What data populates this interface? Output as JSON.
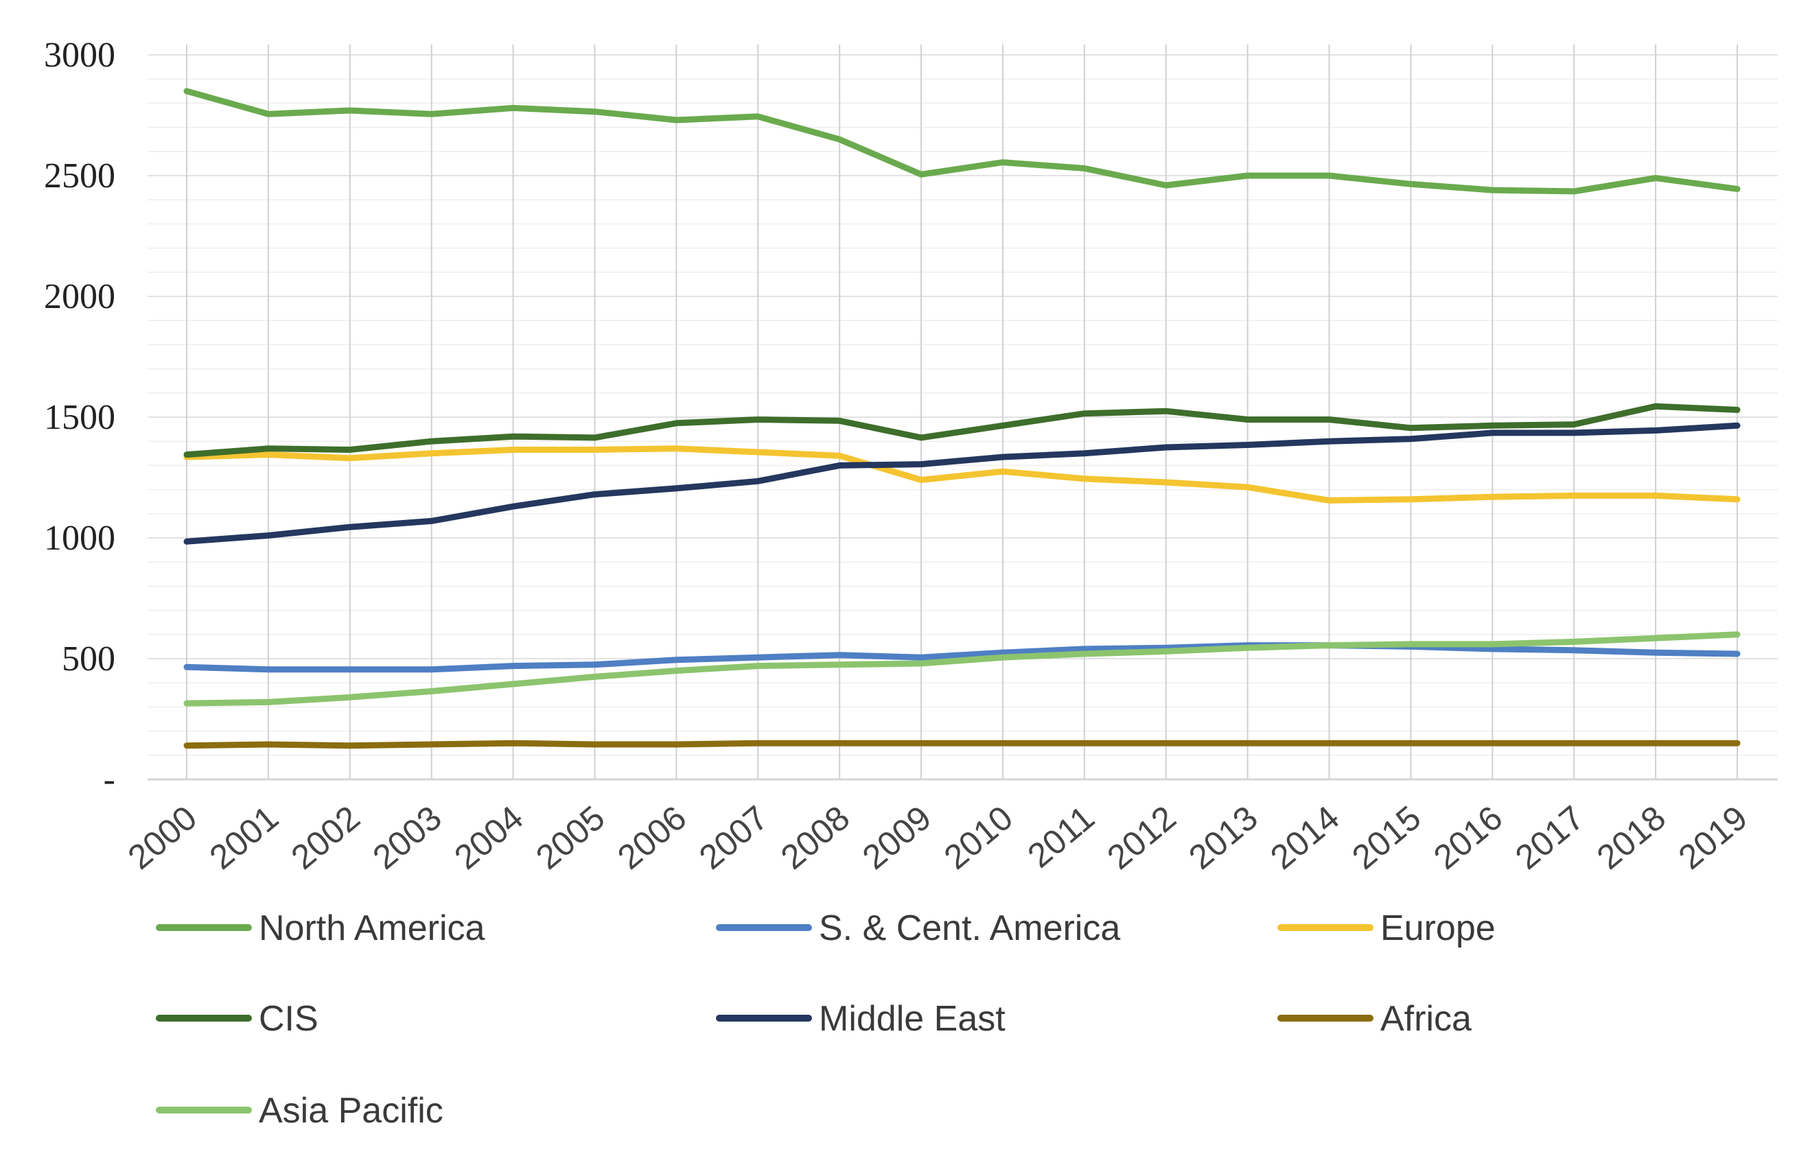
{
  "chart_data": {
    "type": "line",
    "title": "",
    "xlabel": "",
    "ylabel": "",
    "ylim": [
      0,
      3000
    ],
    "y_tick_values": [
      0,
      500,
      1000,
      1500,
      2000,
      2500,
      3000
    ],
    "y_tick_labels": [
      "-",
      "500",
      "1000",
      "1500",
      "2000",
      "2500",
      "3000"
    ],
    "grid": true,
    "legend_position": "bottom",
    "categories": [
      "2000",
      "2001",
      "2002",
      "2003",
      "2004",
      "2005",
      "2006",
      "2007",
      "2008",
      "2009",
      "2010",
      "2011",
      "2012",
      "2013",
      "2014",
      "2015",
      "2016",
      "2017",
      "2018",
      "2019"
    ],
    "series": [
      {
        "name": "North America",
        "color": "#6aaa4e",
        "values": [
          2850,
          2755,
          2770,
          2755,
          2780,
          2765,
          2730,
          2745,
          2650,
          2505,
          2555,
          2530,
          2460,
          2500,
          2500,
          2465,
          2440,
          2435,
          2490,
          2445
        ]
      },
      {
        "name": "S. & Cent. America",
        "color": "#4f7fc4",
        "values": [
          465,
          455,
          455,
          455,
          470,
          475,
          495,
          505,
          515,
          505,
          525,
          540,
          545,
          555,
          555,
          550,
          540,
          535,
          525,
          520
        ]
      },
      {
        "name": "Europe",
        "color": "#f4c430",
        "values": [
          1335,
          1345,
          1330,
          1350,
          1365,
          1365,
          1370,
          1355,
          1340,
          1240,
          1275,
          1245,
          1230,
          1210,
          1155,
          1160,
          1170,
          1175,
          1175,
          1160
        ]
      },
      {
        "name": "CIS",
        "color": "#3e6e2b",
        "values": [
          1345,
          1370,
          1365,
          1400,
          1420,
          1415,
          1475,
          1490,
          1485,
          1415,
          1465,
          1515,
          1525,
          1490,
          1490,
          1455,
          1465,
          1470,
          1545,
          1530
        ]
      },
      {
        "name": "Middle East",
        "color": "#24375e",
        "values": [
          985,
          1010,
          1045,
          1070,
          1130,
          1180,
          1205,
          1235,
          1300,
          1305,
          1335,
          1350,
          1375,
          1385,
          1400,
          1410,
          1435,
          1435,
          1445,
          1465
        ]
      },
      {
        "name": "Africa",
        "color": "#8a6d0f",
        "values": [
          140,
          145,
          140,
          145,
          150,
          145,
          145,
          150,
          150,
          150,
          150,
          150,
          150,
          150,
          150,
          150,
          150,
          150,
          150,
          150
        ]
      },
      {
        "name": "Asia Pacific",
        "color": "#8cc46e",
        "values": [
          315,
          320,
          340,
          365,
          395,
          425,
          450,
          470,
          475,
          480,
          505,
          520,
          530,
          545,
          555,
          560,
          560,
          570,
          585,
          600
        ]
      }
    ]
  }
}
